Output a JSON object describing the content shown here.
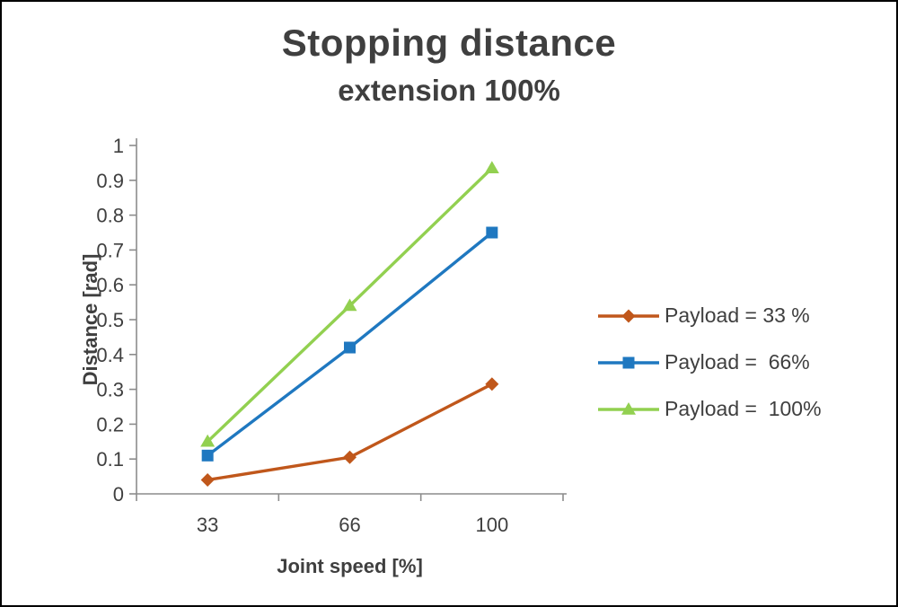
{
  "title": "Stopping distance",
  "subtitle": "extension 100%",
  "chart_data": {
    "type": "line",
    "categories": [
      "33",
      "66",
      "100"
    ],
    "xlabel": "Joint speed [%]",
    "ylabel": "Distance [rad]",
    "ylim": [
      0,
      1
    ],
    "ytick_step": 0.1,
    "grid": false,
    "legend_position": "right",
    "axis_color": "#8c8c8c",
    "text_color": "#3f3f3f",
    "series": [
      {
        "name": "Payload = 33 %",
        "marker": "diamond",
        "color": "#c0571b",
        "values": [
          0.04,
          0.105,
          0.315
        ]
      },
      {
        "name": "Payload =  66%",
        "marker": "square",
        "color": "#1f78c0",
        "values": [
          0.11,
          0.42,
          0.75
        ]
      },
      {
        "name": "Payload =  100%",
        "marker": "triangle",
        "color": "#92d050",
        "values": [
          0.15,
          0.54,
          0.935
        ]
      }
    ]
  }
}
